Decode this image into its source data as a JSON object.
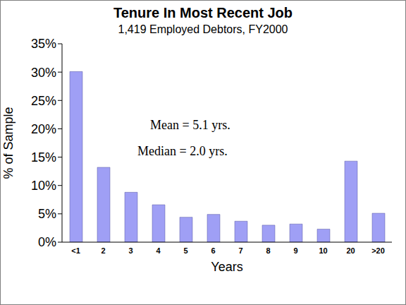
{
  "chart_data": {
    "type": "bar",
    "title": "Tenure In Most Recent Job",
    "subtitle": "1,419 Employed Debtors, FY2000",
    "x_label": "Years",
    "y_label": "% of Sample",
    "annotations": [
      "Mean = 5.1 yrs.",
      "Median = 2.0 yrs."
    ],
    "categories": [
      "<1",
      "2",
      "3",
      "4",
      "5",
      "6",
      "7",
      "8",
      "9",
      "10",
      "20",
      ">20"
    ],
    "values": [
      30.1,
      13.2,
      8.8,
      6.6,
      4.4,
      4.9,
      3.7,
      3.0,
      3.2,
      2.3,
      14.3,
      5.1
    ],
    "color": "#9f9ff5",
    "ylim": [
      0,
      35
    ],
    "yticks": [
      {
        "value": 0,
        "label": "0%"
      },
      {
        "value": 5,
        "label": "5%"
      },
      {
        "value": 10,
        "label": "10%"
      },
      {
        "value": 15,
        "label": "15%"
      },
      {
        "value": 20,
        "label": "20%"
      },
      {
        "value": 25,
        "label": "25%"
      },
      {
        "value": 30,
        "label": "30%"
      },
      {
        "value": 35,
        "label": "35%"
      }
    ],
    "grid": false
  }
}
